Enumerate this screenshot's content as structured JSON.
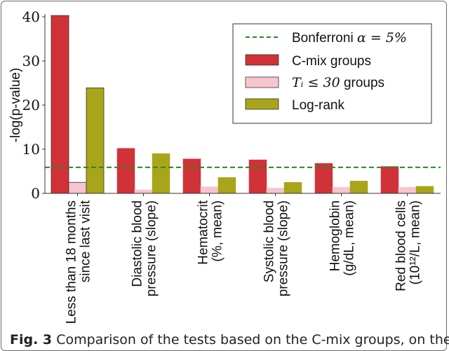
{
  "chart_data": {
    "type": "bar",
    "title": "",
    "xlabel": "",
    "ylabel": "-log(p-value)",
    "ylim": [
      0,
      41
    ],
    "yticks": [
      0,
      10,
      20,
      30,
      40
    ],
    "grid": false,
    "legend_position": "upper right",
    "categories": [
      "Less than 18 months since last visit",
      "Diastolic blood pressure (slope)",
      "Hematocrit (%, mean)",
      "Systolic blood pressure (slope)",
      "Hemoglobin (g/dL, mean)",
      "Red blood cells (10^12/L, mean)"
    ],
    "category_lines": [
      [
        "Less than 18 months",
        "since last visit"
      ],
      [
        "Diastolic blood",
        "pressure (slope)"
      ],
      [
        "Hematocrit",
        "(%, mean)"
      ],
      [
        "Systolic blood",
        "pressure (slope)"
      ],
      [
        "Hemoglobin",
        "(g/dL, mean)"
      ],
      [
        "Red blood cells",
        "(10¹²/L, mean)"
      ]
    ],
    "series": [
      {
        "name": "C-mix groups",
        "color": "#d03238",
        "values": [
          40.3,
          10.2,
          7.8,
          7.6,
          6.8,
          6.1
        ]
      },
      {
        "name": "T_i ≤ 30 groups",
        "color": "#f7c5ce",
        "values": [
          2.5,
          0.8,
          1.5,
          1.2,
          1.4,
          1.4
        ]
      },
      {
        "name": "Log-rank",
        "color": "#a8a51a",
        "values": [
          23.9,
          9.0,
          3.6,
          2.5,
          2.8,
          1.6
        ]
      }
    ],
    "reference_lines": [
      {
        "name": "Bonferroni α = 5%",
        "value": 5.9,
        "style": "dashed",
        "color": "#228b22"
      }
    ]
  },
  "legend": {
    "items": [
      {
        "label": "Bonferroni α = 5%",
        "prefix": "Bonferroni ",
        "math": "α = 5%"
      },
      {
        "label": "C-mix groups"
      },
      {
        "label": "T_i ≤ 30 groups",
        "math": "Tᵢ ≤ 30",
        "suffix": " groups"
      },
      {
        "label": "Log-rank"
      }
    ]
  },
  "caption": {
    "fig_label": "Fig. 3",
    "text": " Comparison of the tests based on the C-mix groups, on the"
  }
}
